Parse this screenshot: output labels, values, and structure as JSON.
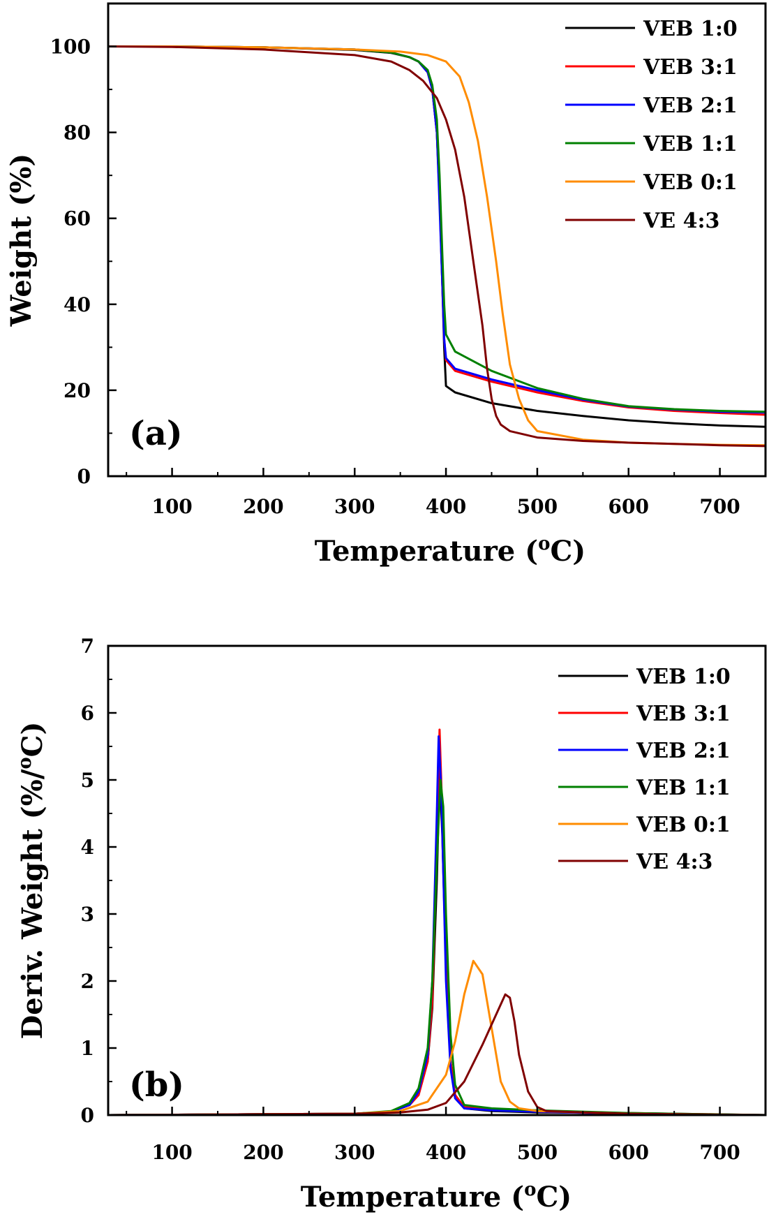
{
  "chart_data": [
    {
      "type": "line",
      "panel_label": "(a)",
      "xlabel": "Temperature (",
      "xlabel_sup": "o",
      "xlabel_end": "C)",
      "ylabel": "Weight (%)",
      "xlim": [
        30,
        750
      ],
      "ylim": [
        0,
        110
      ],
      "xticks": [
        100,
        200,
        300,
        400,
        500,
        600,
        700
      ],
      "yticks": [
        0,
        20,
        40,
        60,
        80,
        100
      ],
      "legend_position": "top-right",
      "series": [
        {
          "name": "VEB 1:0",
          "color": "#000000",
          "x": [
            30,
            100,
            200,
            300,
            340,
            360,
            370,
            380,
            385,
            390,
            393,
            396,
            398,
            400,
            410,
            450,
            500,
            550,
            600,
            650,
            700,
            750
          ],
          "y": [
            100,
            100,
            99.8,
            99.2,
            98.5,
            97.5,
            96.5,
            94,
            90,
            80,
            65,
            45,
            30,
            21,
            19.5,
            17,
            15.2,
            14,
            13,
            12.3,
            11.8,
            11.5
          ]
        },
        {
          "name": "VEB 3:1",
          "color": "#ff0000",
          "x": [
            30,
            100,
            200,
            300,
            340,
            360,
            370,
            380,
            385,
            390,
            393,
            396,
            398,
            400,
            410,
            450,
            500,
            550,
            600,
            650,
            700,
            750
          ],
          "y": [
            100,
            100,
            99.8,
            99.3,
            98.6,
            97.5,
            96.5,
            94,
            90,
            80,
            65,
            45,
            32,
            27,
            24.5,
            22,
            19.5,
            17.5,
            16,
            15.2,
            14.7,
            14.3
          ]
        },
        {
          "name": "VEB 2:1",
          "color": "#0000ff",
          "x": [
            30,
            100,
            200,
            300,
            340,
            360,
            370,
            380,
            385,
            390,
            393,
            396,
            398,
            400,
            410,
            450,
            500,
            550,
            600,
            650,
            700,
            750
          ],
          "y": [
            100,
            100,
            99.8,
            99.3,
            98.6,
            97.5,
            96.5,
            94,
            90,
            80,
            63,
            45,
            32,
            27.5,
            25,
            22.5,
            20,
            17.8,
            16.2,
            15.5,
            15,
            14.8
          ]
        },
        {
          "name": "VEB 1:1",
          "color": "#008000",
          "x": [
            30,
            100,
            200,
            300,
            340,
            360,
            370,
            380,
            385,
            390,
            393,
            396,
            398,
            400,
            410,
            450,
            500,
            550,
            600,
            650,
            700,
            750
          ],
          "y": [
            100,
            100,
            99.8,
            99.3,
            98.6,
            97.5,
            96.5,
            94.5,
            91,
            83,
            70,
            52,
            40,
            33,
            29,
            24.5,
            20.5,
            18,
            16.3,
            15.6,
            15.2,
            15
          ]
        },
        {
          "name": "VEB 0:1",
          "color": "#ff8c00",
          "x": [
            30,
            100,
            200,
            300,
            350,
            380,
            400,
            415,
            425,
            435,
            445,
            455,
            462,
            470,
            480,
            490,
            500,
            550,
            600,
            650,
            700,
            750
          ],
          "y": [
            100,
            100,
            99.8,
            99.3,
            98.8,
            98,
            96.5,
            93,
            87,
            78,
            65,
            50,
            38,
            26,
            18,
            13,
            10.5,
            8.5,
            7.8,
            7.5,
            7.3,
            7.2
          ]
        },
        {
          "name": "VE 4:3",
          "color": "#800000",
          "x": [
            30,
            100,
            200,
            300,
            340,
            360,
            375,
            390,
            400,
            410,
            420,
            430,
            440,
            445,
            450,
            455,
            460,
            470,
            500,
            550,
            600,
            650,
            700,
            750
          ],
          "y": [
            100,
            99.9,
            99.3,
            98,
            96.5,
            94.5,
            92,
            88,
            83,
            76,
            65,
            50,
            35,
            25,
            18,
            14,
            12,
            10.5,
            9,
            8.2,
            7.8,
            7.5,
            7.2,
            7
          ]
        }
      ]
    },
    {
      "type": "line",
      "panel_label": "(b)",
      "xlabel": "Temperature (",
      "xlabel_sup": "o",
      "xlabel_end": "C)",
      "ylabel": "Deriv. Weight (%/",
      "ylabel_sup": "o",
      "ylabel_end": "C)",
      "xlim": [
        30,
        750
      ],
      "ylim": [
        0,
        7
      ],
      "xticks": [
        100,
        200,
        300,
        400,
        500,
        600,
        700
      ],
      "yticks": [
        0,
        1,
        2,
        3,
        4,
        5,
        6,
        7
      ],
      "legend_position": "top-right",
      "series": [
        {
          "name": "VEB 1:0",
          "color": "#000000",
          "x": [
            30,
            300,
            340,
            360,
            370,
            380,
            385,
            390,
            393,
            396,
            400,
            405,
            410,
            420,
            450,
            500,
            600,
            650,
            750
          ],
          "y": [
            0,
            0.02,
            0.05,
            0.15,
            0.3,
            0.8,
            1.6,
            3.5,
            5.1,
            4.2,
            2.2,
            0.8,
            0.3,
            0.1,
            0.06,
            0.04,
            0.03,
            0.02,
            0
          ]
        },
        {
          "name": "VEB 3:1",
          "color": "#ff0000",
          "x": [
            30,
            300,
            340,
            360,
            370,
            380,
            385,
            390,
            393,
            396,
            400,
            405,
            410,
            420,
            450,
            500,
            600,
            750
          ],
          "y": [
            0,
            0.02,
            0.05,
            0.15,
            0.3,
            0.8,
            1.7,
            4,
            5.75,
            4.5,
            2.2,
            0.8,
            0.3,
            0.12,
            0.08,
            0.05,
            0.02,
            0
          ]
        },
        {
          "name": "VEB 2:1",
          "color": "#0000ff",
          "x": [
            30,
            300,
            340,
            360,
            370,
            380,
            385,
            390,
            392,
            395,
            400,
            405,
            410,
            420,
            450,
            500,
            600,
            750
          ],
          "y": [
            0,
            0.02,
            0.05,
            0.15,
            0.35,
            0.9,
            2,
            4.5,
            5.65,
            4.8,
            2,
            0.7,
            0.25,
            0.1,
            0.07,
            0.05,
            0.02,
            0
          ]
        },
        {
          "name": "VEB 1:1",
          "color": "#008000",
          "x": [
            30,
            300,
            340,
            360,
            370,
            380,
            385,
            390,
            394,
            397,
            400,
            405,
            410,
            420,
            450,
            500,
            600,
            750
          ],
          "y": [
            0,
            0.02,
            0.06,
            0.18,
            0.4,
            1,
            2,
            3.8,
            5,
            4.6,
            3,
            1.2,
            0.45,
            0.15,
            0.1,
            0.07,
            0.03,
            0
          ]
        },
        {
          "name": "VEB 0:1",
          "color": "#ff8c00",
          "x": [
            30,
            300,
            350,
            380,
            400,
            410,
            420,
            430,
            440,
            450,
            460,
            470,
            480,
            500,
            550,
            600,
            750
          ],
          "y": [
            0,
            0.02,
            0.06,
            0.2,
            0.6,
            1.1,
            1.8,
            2.3,
            2.1,
            1.3,
            0.5,
            0.2,
            0.1,
            0.06,
            0.04,
            0.02,
            0
          ]
        },
        {
          "name": "VE 4:3",
          "color": "#800000",
          "x": [
            30,
            300,
            350,
            380,
            400,
            420,
            440,
            455,
            465,
            470,
            475,
            480,
            490,
            500,
            510,
            550,
            600,
            750
          ],
          "y": [
            0,
            0.02,
            0.04,
            0.08,
            0.18,
            0.5,
            1.05,
            1.5,
            1.8,
            1.75,
            1.4,
            0.9,
            0.35,
            0.12,
            0.06,
            0.04,
            0.02,
            0
          ]
        }
      ]
    }
  ]
}
